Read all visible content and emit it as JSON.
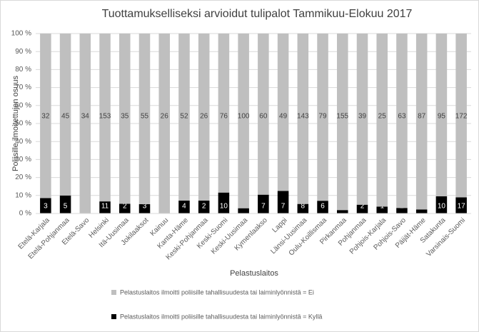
{
  "chart_data": {
    "type": "stacked_percent_bar",
    "title": "Tuottamukselliseksi arvioidut tulipalot Tammikuu-Elokuu 2017",
    "x_label": "Pelastuslaitos",
    "y_label": "Poliisille ilmoitettujen osuus",
    "categories": [
      "Etelä-Karjala",
      "Etelä-Pohjanmaa",
      "Etelä-Savo",
      "Helsinki",
      "Itä-Uusimaa",
      "Jokilaaksot",
      "Kainuu",
      "Kanta-Häme",
      "Keski-Pohjanmaa",
      "Keski-Suomi",
      "Keski-Uusimaa",
      "Kymenlaakso",
      "Lappi",
      "Länsi-Uusimaa",
      "Oulu-Koillismaa",
      "Pirkanmaa",
      "Pohjanmaa",
      "Pohjois-Karjala",
      "Pohjois-Savo",
      "Päijät-Häme",
      "Satakunta",
      "Varsinais-Suomi"
    ],
    "series": [
      {
        "name": "Pelastuslaitos ilmoitti poliisille tahallisuudesta tai laiminlyönnistä = Kyllä",
        "color": "#000000",
        "values": [
          3,
          5,
          0,
          11,
          2,
          3,
          0,
          4,
          2,
          10,
          3,
          7,
          7,
          8,
          6,
          3,
          2,
          1,
          2,
          2,
          10,
          17
        ]
      },
      {
        "name": "Pelastuslaitos ilmoitti poliisille tahallisuudesta tai laiminlyönnistä = Ei",
        "color": "#bfbfbf",
        "values": [
          32,
          45,
          34,
          153,
          35,
          55,
          26,
          52,
          26,
          76,
          100,
          60,
          49,
          143,
          79,
          155,
          39,
          25,
          63,
          87,
          95,
          172
        ]
      }
    ],
    "ylim": [
      0,
      100
    ],
    "yticks": [
      {
        "value": 0,
        "label": "0 %"
      },
      {
        "value": 10,
        "label": "10 %"
      },
      {
        "value": 20,
        "label": "20 %"
      },
      {
        "value": 30,
        "label": "30 %"
      },
      {
        "value": 40,
        "label": "40 %"
      },
      {
        "value": 50,
        "label": "50 %"
      },
      {
        "value": 60,
        "label": "60 %"
      },
      {
        "value": 70,
        "label": "70 %"
      },
      {
        "value": 80,
        "label": "80 %"
      },
      {
        "value": 90,
        "label": "90 %"
      },
      {
        "value": 100,
        "label": "100 %"
      }
    ],
    "legend": "bottom"
  }
}
